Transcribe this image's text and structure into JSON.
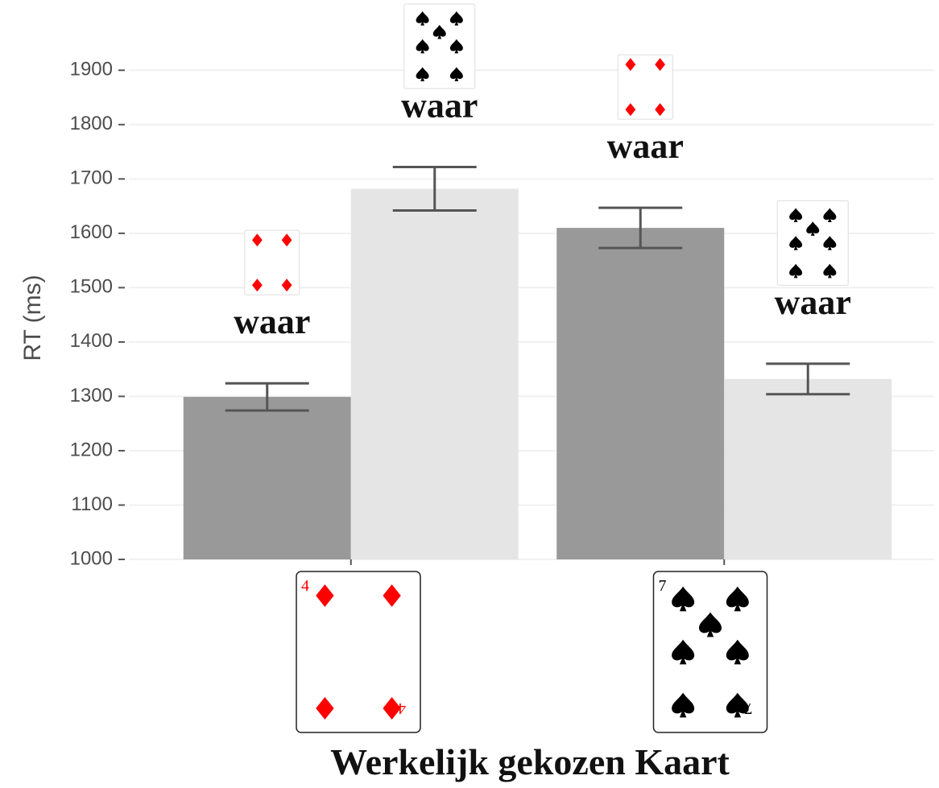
{
  "chart_data": {
    "type": "bar",
    "y_label": "RT (ms)",
    "x_label": "Werkelijk gekozen Kaart",
    "categories": [
      "4",
      "7"
    ],
    "series": [
      {
        "color": "#999999",
        "values": [
          1299,
          1610
        ],
        "errors": [
          25,
          37
        ]
      },
      {
        "color": "#e5e5e5",
        "values": [
          1682,
          1332
        ],
        "errors": [
          40,
          28
        ]
      }
    ],
    "annotations": [
      "waar",
      "waar",
      "waar",
      "waar"
    ],
    "ylim": [
      1000,
      1970
    ],
    "yticks": [
      1000,
      1100,
      1200,
      1300,
      1400,
      1500,
      1600,
      1700,
      1800,
      1900
    ],
    "grid": true
  }
}
